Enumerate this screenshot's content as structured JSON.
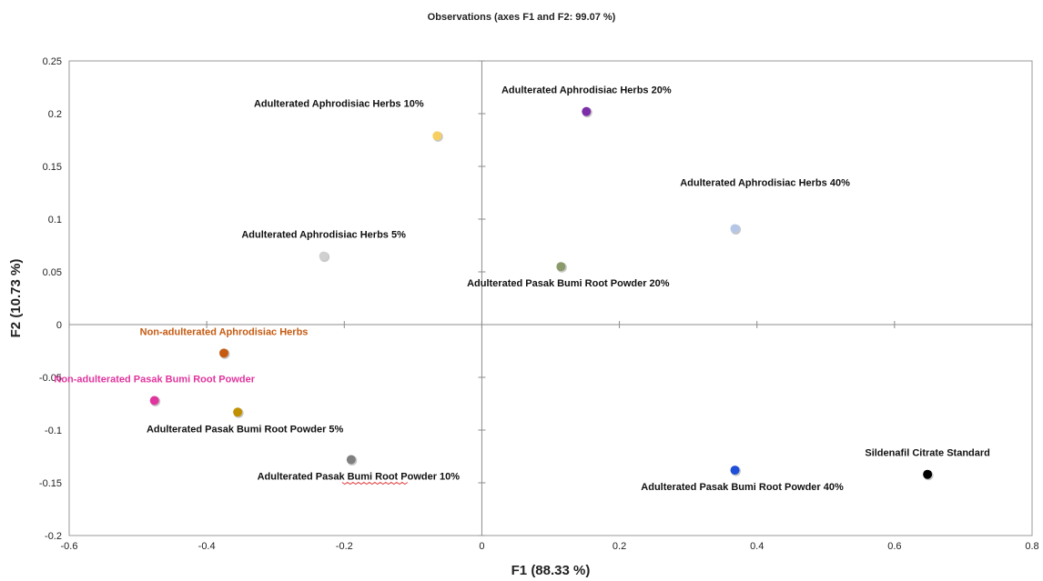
{
  "chart_data": {
    "type": "scatter",
    "title": "Observations (axes F1 and F2: 99.07 %)",
    "xlabel": "F1 (88.33 %)",
    "ylabel": "F2 (10.73 %)",
    "xlim": [
      -0.6,
      0.8
    ],
    "ylim": [
      -0.2,
      0.25
    ],
    "x_ticks": [
      -0.6,
      -0.4,
      -0.2,
      0,
      0.2,
      0.4,
      0.6,
      0.8
    ],
    "y_ticks": [
      -0.2,
      -0.15,
      -0.1,
      -0.05,
      0,
      0.05,
      0.1,
      0.15,
      0.2,
      0.25
    ],
    "x_tick_labels": [
      "-0.6",
      "-0.4",
      "-0.2",
      "0",
      "0.2",
      "0.4",
      "0.6",
      "0.8"
    ],
    "y_tick_labels": [
      "-0.2",
      "-0.15",
      "-0.1",
      "-0.05",
      "0",
      "0.05",
      "0.1",
      "0.15",
      "0.2",
      "0.25"
    ],
    "grid": false,
    "legend": "none",
    "points": [
      {
        "label": "Adulterated  Aphrodisiac Herbs 10%",
        "x": -0.065,
        "y": 0.179,
        "color": "#f7cf60",
        "label_pos": "above-left"
      },
      {
        "label": "Adulterated  Aphrodisiac Herbs 20%",
        "x": 0.152,
        "y": 0.202,
        "color": "#7b2ea8",
        "label_pos": "above"
      },
      {
        "label": "Adulterated  Aphrodisiac Herbs 40%",
        "x": 0.368,
        "y": 0.091,
        "color": "#b4c7e7",
        "label_pos": "above-right"
      },
      {
        "label": "Adulterated  Aphrodisiac Herbs 5%",
        "x": -0.23,
        "y": 0.065,
        "color": "#d0d0d0",
        "label_pos": "above"
      },
      {
        "label": "Adulterated  Pasak Bumi Root Powder 20%",
        "x": 0.115,
        "y": 0.055,
        "color": "#8a9a6a",
        "label_pos": "below"
      },
      {
        "label": "Non-adulterated  Aphrodisiac Herbs",
        "x": -0.375,
        "y": -0.027,
        "color": "#c55a11",
        "label_pos": "above",
        "label_color": "#c55a11"
      },
      {
        "label": "Non-adulterated  Pasak Bumi Root Powder",
        "x": -0.476,
        "y": -0.072,
        "color": "#e0359e",
        "label_pos": "above",
        "label_color": "#e0359e"
      },
      {
        "label": "Adulterated  Pasak Bumi Root Powder 5%",
        "x": -0.355,
        "y": -0.083,
        "color": "#c09000",
        "label_pos": "below"
      },
      {
        "label": "Adulterated  Pasak Bumi Root Powder 10%",
        "x": -0.19,
        "y": -0.128,
        "color": "#7f7f7f",
        "label_pos": "below"
      },
      {
        "label": "Adulterated  Pasak Bumi Root Powder 40%",
        "x": 0.368,
        "y": -0.138,
        "color": "#1f4fd8",
        "label_pos": "below"
      },
      {
        "label": "Sildenafil Citrate Standard",
        "x": 0.648,
        "y": -0.142,
        "color": "#000000",
        "label_pos": "above"
      }
    ]
  }
}
